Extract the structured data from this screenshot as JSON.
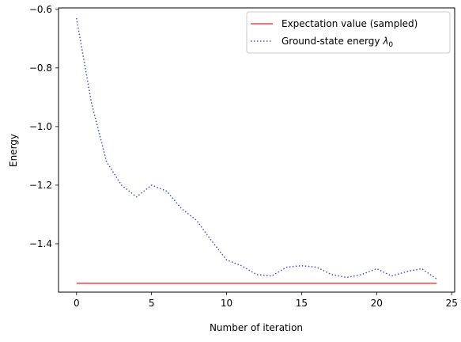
{
  "chart_data": {
    "type": "line",
    "xlabel": "Number of iteration",
    "ylabel": "Energy",
    "xlim": [
      -1.2,
      25.2
    ],
    "ylim": [
      -1.565,
      -0.595
    ],
    "xticks": [
      0,
      5,
      10,
      15,
      20,
      25
    ],
    "yticks": [
      -1.4,
      -1.2,
      -1.0,
      -0.8,
      -0.6
    ],
    "xtick_labels": [
      "0",
      "5",
      "10",
      "15",
      "20",
      "25"
    ],
    "ytick_labels": [
      "−1.4",
      "−1.2",
      "−1.0",
      "−0.8",
      "−0.6"
    ],
    "legend_position": "top-right",
    "grid": false,
    "series": [
      {
        "name": "Expectation value (sampled)",
        "style": "solid",
        "color": "#ff4040",
        "x": [
          0,
          24
        ],
        "y": [
          -1.535,
          -1.535
        ]
      },
      {
        "name": "Ground-state energy λ0",
        "style": "dotted",
        "color": "#4a4adb",
        "x": [
          0,
          1,
          2,
          3,
          4,
          5,
          6,
          7,
          8,
          9,
          10,
          11,
          12,
          13,
          14,
          15,
          16,
          17,
          18,
          19,
          20,
          21,
          22,
          23,
          24
        ],
        "y": [
          -0.63,
          -0.92,
          -1.12,
          -1.2,
          -1.24,
          -1.2,
          -1.22,
          -1.28,
          -1.32,
          -1.39,
          -1.455,
          -1.475,
          -1.505,
          -1.51,
          -1.48,
          -1.475,
          -1.48,
          -1.505,
          -1.515,
          -1.505,
          -1.485,
          -1.51,
          -1.495,
          -1.485,
          -1.52
        ]
      }
    ]
  }
}
